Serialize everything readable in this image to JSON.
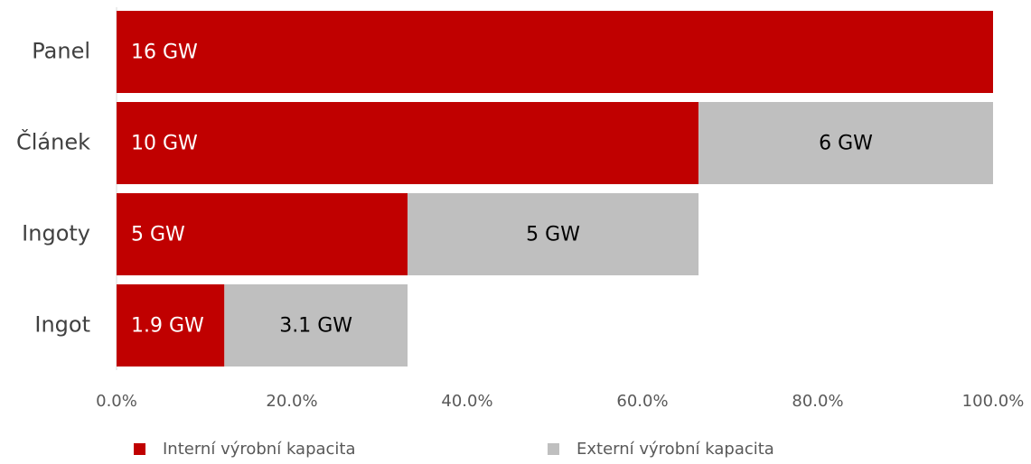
{
  "chart_data": {
    "type": "stacked_bar_horizontal",
    "categories": [
      "Panel",
      "Článek",
      "Ingoty",
      "Ingot"
    ],
    "series": [
      {
        "name": "Interní výrobní kapacita",
        "color": "#c00000",
        "values": [
          100,
          66.4,
          33.2,
          12.3
        ],
        "value_labels": [
          "16 GW",
          "10 GW",
          "5 GW",
          "1.9 GW"
        ]
      },
      {
        "name": "Externí výrobní kapacita",
        "color": "#bfbfbf",
        "values": [
          null,
          33.6,
          33.2,
          20.9
        ],
        "value_labels": [
          null,
          "6 GW",
          "5 GW",
          "3.1 GW"
        ]
      }
    ],
    "xlim": [
      0,
      100
    ],
    "xticks": [
      {
        "value": 0,
        "label": "0.0%"
      },
      {
        "value": 20,
        "label": "20.0%"
      },
      {
        "value": 40,
        "label": "40.0%"
      },
      {
        "value": 60,
        "label": "60.0%"
      },
      {
        "value": 80,
        "label": "80.0%"
      },
      {
        "value": 100,
        "label": "100.0%"
      }
    ],
    "legend": "bottom"
  }
}
